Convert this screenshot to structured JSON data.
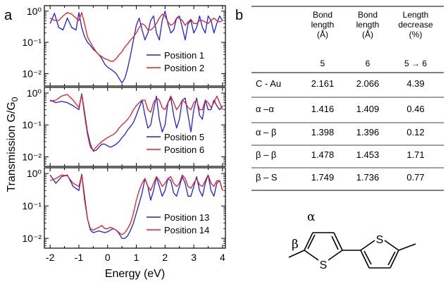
{
  "figure": {
    "panel_a_label": "a",
    "panel_b_label": "b"
  },
  "chart_data": [
    {
      "type": "line",
      "panel": "a-top",
      "x_range": [
        -2.2,
        4.1
      ],
      "y_log": true,
      "y_range": [
        0.004,
        1.5
      ],
      "y_ticks": [
        "10⁻²",
        "10⁻¹",
        "10⁰"
      ],
      "legend_position": "bottom-right",
      "series": [
        {
          "name": "Position 1",
          "color": "#2020dd",
          "x": [
            -2,
            -1.85,
            -1.7,
            -1.55,
            -1.4,
            -1.25,
            -1.1,
            -1.0,
            -0.9,
            -0.8,
            -0.7,
            -0.6,
            -0.5,
            -0.4,
            -0.3,
            -0.2,
            -0.1,
            0,
            0.1,
            0.2,
            0.3,
            0.4,
            0.5,
            0.6,
            0.7,
            0.8,
            0.9,
            1.0,
            1.1,
            1.2,
            1.3,
            1.4,
            1.5,
            1.6,
            1.7,
            1.8,
            1.9,
            2.0,
            2.1,
            2.2,
            2.3,
            2.4,
            2.5,
            2.6,
            2.7,
            2.8,
            2.9,
            3.0,
            3.1,
            3.2,
            3.3,
            3.4,
            3.5,
            3.6,
            3.7,
            3.8,
            3.9,
            4.0
          ],
          "y": [
            0.4,
            0.85,
            0.3,
            0.25,
            0.6,
            0.3,
            0.25,
            0.9,
            0.3,
            0.15,
            0.1,
            0.08,
            0.06,
            0.05,
            0.04,
            0.03,
            0.02,
            0.016,
            0.014,
            0.012,
            0.01,
            0.007,
            0.005,
            0.007,
            0.015,
            0.04,
            0.12,
            0.35,
            0.6,
            0.25,
            0.12,
            0.2,
            0.5,
            0.7,
            0.2,
            0.12,
            0.5,
            1.0,
            0.4,
            0.2,
            0.25,
            0.6,
            0.7,
            0.3,
            0.12,
            0.4,
            0.5,
            0.2,
            0.3,
            0.7,
            0.3,
            0.2,
            0.7,
            0.5,
            0.2,
            0.4,
            0.7,
            0.5
          ]
        },
        {
          "name": "Position 2",
          "color": "#e02020",
          "x": [
            -2,
            -1.85,
            -1.7,
            -1.55,
            -1.4,
            -1.25,
            -1.1,
            -1.0,
            -0.9,
            -0.8,
            -0.7,
            -0.6,
            -0.5,
            -0.4,
            -0.3,
            -0.2,
            -0.1,
            0,
            0.1,
            0.2,
            0.3,
            0.4,
            0.5,
            0.6,
            0.7,
            0.8,
            0.9,
            1.0,
            1.1,
            1.2,
            1.3,
            1.4,
            1.5,
            1.6,
            1.7,
            1.8,
            1.9,
            2.0,
            2.1,
            2.2,
            2.3,
            2.4,
            2.5,
            2.6,
            2.7,
            2.8,
            2.9,
            3.0,
            3.1,
            3.2,
            3.3,
            3.4,
            3.5,
            3.6,
            3.7,
            3.8,
            3.9,
            4.0
          ],
          "y": [
            0.6,
            0.5,
            0.5,
            0.7,
            0.9,
            0.8,
            0.6,
            0.5,
            0.9,
            0.4,
            0.15,
            0.1,
            0.07,
            0.05,
            0.04,
            0.035,
            0.03,
            0.028,
            0.025,
            0.025,
            0.03,
            0.04,
            0.05,
            0.07,
            0.09,
            0.12,
            0.15,
            0.2,
            0.3,
            0.4,
            0.35,
            0.25,
            0.25,
            0.3,
            0.4,
            0.6,
            0.8,
            0.7,
            0.45,
            0.35,
            0.4,
            0.6,
            0.6,
            0.5,
            0.35,
            0.45,
            0.55,
            0.4,
            0.4,
            0.5,
            0.5,
            0.45,
            0.4,
            0.5,
            0.6,
            0.5,
            0.45,
            0.5
          ]
        }
      ]
    },
    {
      "type": "line",
      "panel": "a-middle",
      "x_range": [
        -2.2,
        4.1
      ],
      "y_log": true,
      "y_range": [
        0.005,
        1.5
      ],
      "y_ticks": [
        "10⁻²",
        "10⁻¹",
        "10⁰"
      ],
      "legend_position": "bottom-right",
      "series": [
        {
          "name": "Position 5",
          "color": "#2020dd",
          "x": [
            -2,
            -1.8,
            -1.6,
            -1.4,
            -1.2,
            -1.0,
            -0.9,
            -0.8,
            -0.7,
            -0.6,
            -0.5,
            -0.4,
            -0.3,
            -0.2,
            -0.1,
            0,
            0.1,
            0.2,
            0.3,
            0.4,
            0.5,
            0.6,
            0.7,
            0.8,
            0.9,
            1.0,
            1.1,
            1.2,
            1.3,
            1.4,
            1.5,
            1.6,
            1.7,
            1.8,
            1.9,
            2.0,
            2.1,
            2.2,
            2.3,
            2.4,
            2.5,
            2.6,
            2.7,
            2.8,
            2.9,
            3.0,
            3.1,
            3.2,
            3.3,
            3.4,
            3.5,
            3.6,
            3.7,
            3.8,
            3.9,
            4.0
          ],
          "y": [
            0.6,
            0.5,
            0.55,
            0.5,
            0.4,
            0.3,
            0.95,
            0.25,
            0.06,
            0.025,
            0.015,
            0.016,
            0.02,
            0.025,
            0.025,
            0.022,
            0.02,
            0.022,
            0.025,
            0.03,
            0.04,
            0.05,
            0.07,
            0.09,
            0.12,
            0.2,
            0.35,
            0.6,
            0.2,
            0.08,
            0.1,
            0.3,
            0.8,
            0.15,
            0.06,
            0.1,
            0.5,
            0.7,
            0.2,
            0.08,
            0.15,
            0.6,
            0.7,
            0.2,
            0.06,
            0.3,
            0.7,
            0.2,
            0.15,
            0.6,
            0.3,
            0.3,
            0.6,
            0.4,
            0.3,
            0.4
          ]
        },
        {
          "name": "Position 6",
          "color": "#e02020",
          "x": [
            -2,
            -1.8,
            -1.6,
            -1.4,
            -1.2,
            -1.0,
            -0.9,
            -0.8,
            -0.7,
            -0.6,
            -0.5,
            -0.4,
            -0.3,
            -0.2,
            -0.1,
            0,
            0.1,
            0.2,
            0.3,
            0.4,
            0.5,
            0.6,
            0.7,
            0.8,
            0.9,
            1.0,
            1.1,
            1.2,
            1.3,
            1.4,
            1.5,
            1.6,
            1.7,
            1.8,
            1.9,
            2.0,
            2.1,
            2.2,
            2.3,
            2.4,
            2.5,
            2.6,
            2.7,
            2.8,
            2.9,
            3.0,
            3.1,
            3.2,
            3.3,
            3.4,
            3.5,
            3.6,
            3.7,
            3.8,
            3.9,
            4.0
          ],
          "y": [
            0.55,
            0.6,
            0.8,
            0.9,
            0.6,
            0.35,
            0.9,
            0.2,
            0.05,
            0.02,
            0.016,
            0.02,
            0.025,
            0.03,
            0.035,
            0.04,
            0.045,
            0.05,
            0.06,
            0.08,
            0.1,
            0.12,
            0.15,
            0.2,
            0.3,
            0.4,
            0.5,
            0.6,
            0.6,
            0.3,
            0.25,
            0.5,
            0.7,
            0.6,
            0.35,
            0.3,
            0.5,
            0.8,
            0.5,
            0.3,
            0.4,
            0.6,
            0.5,
            0.35,
            0.3,
            0.5,
            0.6,
            0.3,
            0.3,
            0.6,
            0.5,
            0.35,
            0.5,
            0.8,
            0.5,
            0.3
          ]
        }
      ]
    },
    {
      "type": "line",
      "panel": "a-bottom",
      "x_range": [
        -2.2,
        4.1
      ],
      "y_log": true,
      "y_range": [
        0.005,
        1.5
      ],
      "y_ticks": [
        "10⁻²",
        "10⁻¹",
        "10⁰"
      ],
      "x_ticks": [
        -2,
        -1,
        0,
        1,
        2,
        3,
        4
      ],
      "xlabel": "Energy (eV)",
      "legend_position": "bottom-right",
      "series": [
        {
          "name": "Position 13",
          "color": "#2020dd",
          "x": [
            -2,
            -1.8,
            -1.6,
            -1.4,
            -1.2,
            -1.0,
            -0.9,
            -0.8,
            -0.7,
            -0.6,
            -0.5,
            -0.4,
            -0.3,
            -0.2,
            -0.1,
            0,
            0.1,
            0.2,
            0.3,
            0.4,
            0.5,
            0.6,
            0.7,
            0.8,
            0.9,
            1.0,
            1.1,
            1.2,
            1.3,
            1.4,
            1.5,
            1.6,
            1.7,
            1.8,
            1.9,
            2.0,
            2.1,
            2.2,
            2.3,
            2.4,
            2.5,
            2.6,
            2.7,
            2.8,
            2.9,
            3.0,
            3.1,
            3.2,
            3.3,
            3.4,
            3.5,
            3.6,
            3.7,
            3.8,
            3.9,
            4.0
          ],
          "y": [
            0.9,
            0.5,
            0.8,
            0.9,
            0.4,
            0.3,
            0.95,
            0.2,
            0.04,
            0.018,
            0.015,
            0.016,
            0.017,
            0.016,
            0.015,
            0.016,
            0.018,
            0.02,
            0.018,
            0.014,
            0.01,
            0.01,
            0.012,
            0.018,
            0.03,
            0.06,
            0.12,
            0.25,
            0.7,
            0.4,
            0.15,
            0.3,
            0.8,
            0.4,
            0.2,
            0.3,
            0.7,
            0.6,
            0.25,
            0.2,
            0.4,
            0.8,
            0.5,
            0.2,
            0.2,
            0.4,
            0.8,
            0.3,
            0.2,
            0.5,
            0.9,
            0.3,
            0.2,
            0.5,
            0.6,
            0.3
          ]
        },
        {
          "name": "Position 14",
          "color": "#e02020",
          "x": [
            -2,
            -1.8,
            -1.6,
            -1.4,
            -1.2,
            -1.0,
            -0.9,
            -0.8,
            -0.7,
            -0.6,
            -0.5,
            -0.4,
            -0.3,
            -0.2,
            -0.1,
            0,
            0.1,
            0.2,
            0.3,
            0.4,
            0.5,
            0.6,
            0.7,
            0.8,
            0.9,
            1.0,
            1.1,
            1.2,
            1.3,
            1.4,
            1.5,
            1.6,
            1.7,
            1.8,
            1.9,
            2.0,
            2.1,
            2.2,
            2.3,
            2.4,
            2.5,
            2.6,
            2.7,
            2.8,
            2.9,
            3.0,
            3.1,
            3.2,
            3.3,
            3.4,
            3.5,
            3.6,
            3.7,
            3.8,
            3.9,
            4.0
          ],
          "y": [
            0.6,
            0.7,
            0.9,
            0.85,
            0.5,
            0.4,
            0.9,
            0.15,
            0.04,
            0.02,
            0.018,
            0.02,
            0.022,
            0.025,
            0.02,
            0.02,
            0.022,
            0.02,
            0.018,
            0.015,
            0.013,
            0.015,
            0.02,
            0.03,
            0.06,
            0.15,
            0.3,
            0.5,
            0.7,
            0.4,
            0.3,
            0.5,
            0.8,
            0.6,
            0.4,
            0.5,
            0.7,
            0.8,
            0.5,
            0.4,
            0.5,
            0.9,
            0.7,
            0.4,
            0.35,
            0.5,
            0.7,
            0.45,
            0.4,
            0.6,
            0.9,
            0.5,
            0.4,
            0.6,
            0.6,
            0.3
          ]
        }
      ]
    },
    {
      "type": "table",
      "panel": "b",
      "headers": [
        {
          "lines": [
            "Bond",
            "length",
            "(Å)"
          ]
        },
        {
          "lines": [
            "Bond",
            "length",
            "(Å)"
          ]
        },
        {
          "lines": [
            "Length",
            "decrease",
            "(%)"
          ]
        }
      ],
      "subheaders": [
        "5",
        "6",
        "5 → 6"
      ],
      "rows": [
        {
          "label": "C - Au",
          "values": [
            "2.161",
            "2.066",
            "4.39"
          ]
        },
        {
          "label": "α –α",
          "values": [
            "1.416",
            "1.409",
            "0.46"
          ]
        },
        {
          "label": "α – β",
          "values": [
            "1.398",
            "1.396",
            "0.12"
          ]
        },
        {
          "label": "β – β",
          "values": [
            "1.478",
            "1.453",
            "1.71"
          ]
        },
        {
          "label": "β – S",
          "values": [
            "1.749",
            "1.736",
            "0.77"
          ]
        }
      ]
    }
  ],
  "molecule": {
    "alpha_label": "α",
    "beta_label": "β",
    "sulfur_label": "S"
  },
  "y_axis_title": "Transmission G/G",
  "y_axis_title_sub": "0"
}
